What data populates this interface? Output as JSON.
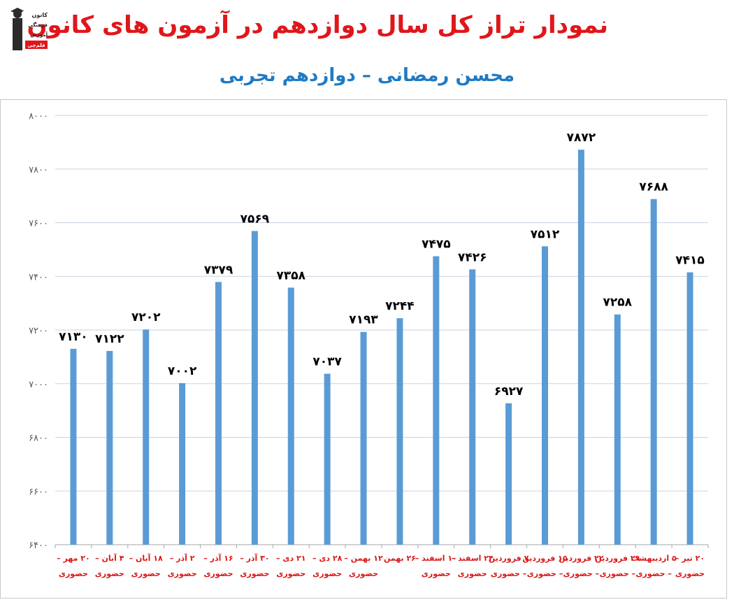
{
  "header": {
    "title": "نمودار تراز کل سال دوازدهم در آزمون های کانون",
    "subtitle": "محسن رمضانی – دوازدهم تجربی"
  },
  "logo": {
    "lines": [
      "کانون",
      "فرهنگی",
      "آموزش",
      "قلم‌چی"
    ]
  },
  "colors": {
    "bar": "#5b9bd5",
    "title": "#e0161b",
    "subtitle": "#1f7ac4",
    "category_text": "#d91818"
  },
  "chart_data": {
    "type": "bar",
    "title": "",
    "xlabel": "",
    "ylabel": "",
    "ylim": [
      6400,
      8000
    ],
    "yticks": [
      6400,
      6600,
      6800,
      7000,
      7200,
      7400,
      7600,
      7800,
      8000
    ],
    "ytick_labels": [
      "۶۴۰۰",
      "۶۶۰۰",
      "۶۸۰۰",
      "۷۰۰۰",
      "۷۲۰۰",
      "۷۴۰۰",
      "۷۶۰۰",
      "۷۸۰۰",
      "۸۰۰۰"
    ],
    "grid": true,
    "categories": [
      [
        "۲۰ مهر –",
        "حضوری"
      ],
      [
        "۴ آبان –",
        "حضوری"
      ],
      [
        "۱۸ آبان –",
        "حضوری"
      ],
      [
        "۲ آذر –",
        "حضوری"
      ],
      [
        "۱۶ آذر –",
        "حضوری"
      ],
      [
        "۳۰ آذر –",
        "حضوری"
      ],
      [
        "۲۱ دی –",
        "حضوری"
      ],
      [
        "۲۸ دی –",
        "حضوری"
      ],
      [
        "۱۲ بهمن –",
        "حضوری"
      ],
      [
        "۲۶ بهمن",
        ""
      ],
      [
        "۱۰ اسفند –",
        "حضوری"
      ],
      [
        "۲۴ اسفند –",
        "حضوری"
      ],
      [
        "۷ فروردین",
        "– حضوری"
      ],
      [
        "۱۵ فروردین",
        "– حضوری"
      ],
      [
        "۲۲ فروردین",
        "– حضوری"
      ],
      [
        "۲۹ فروردین",
        "– حضوری"
      ],
      [
        "۵ اردیبهشت",
        "– حضوری"
      ],
      [
        "۲۰ تیر –",
        "حضوری"
      ]
    ],
    "values": [
      7130,
      7122,
      7202,
      7002,
      7379,
      7569,
      7358,
      7037,
      7193,
      7244,
      7475,
      7426,
      6927,
      7512,
      7872,
      7258,
      7688,
      7415
    ],
    "value_labels": [
      "۷۱۳۰",
      "۷۱۲۲",
      "۷۲۰۲",
      "۷۰۰۲",
      "۷۳۷۹",
      "۷۵۶۹",
      "۷۳۵۸",
      "۷۰۳۷",
      "۷۱۹۳",
      "۷۲۴۴",
      "۷۴۷۵",
      "۷۴۲۶",
      "۶۹۲۷",
      "۷۵۱۲",
      "۷۸۷۲",
      "۷۲۵۸",
      "۷۶۸۸",
      "۷۴۱۵"
    ]
  }
}
